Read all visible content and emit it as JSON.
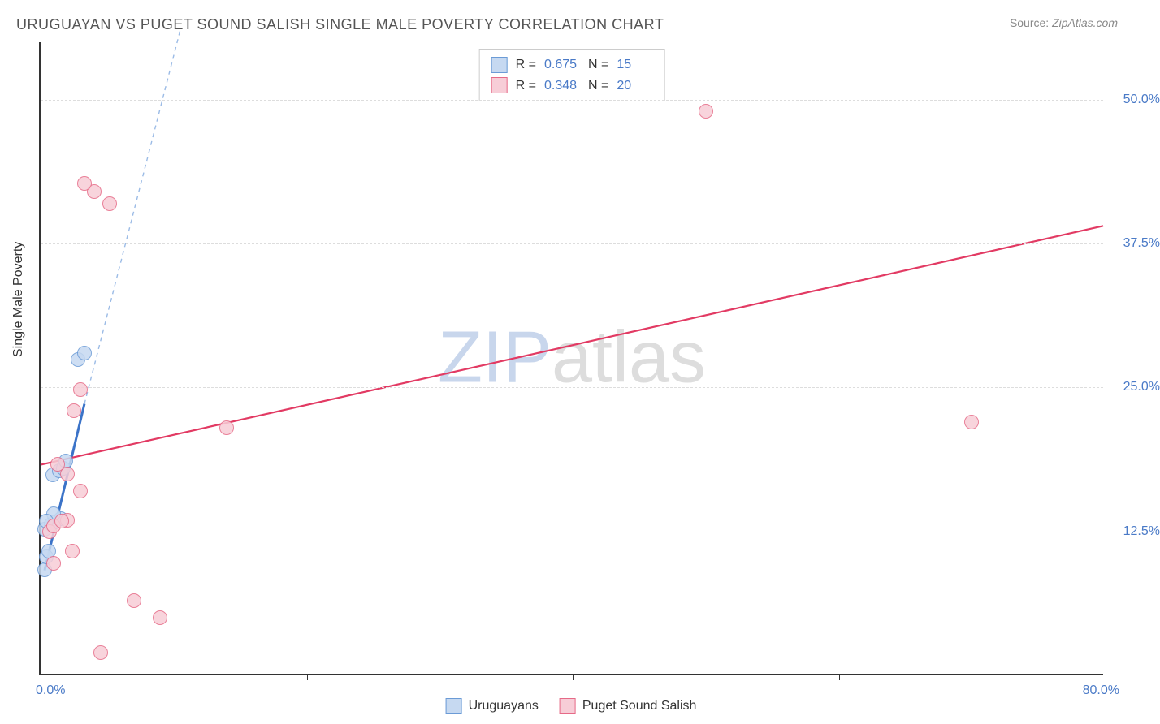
{
  "title": "URUGUAYAN VS PUGET SOUND SALISH SINGLE MALE POVERTY CORRELATION CHART",
  "source_label": "Source:",
  "source_value": "ZipAtlas.com",
  "y_axis_title": "Single Male Poverty",
  "watermark_a": "ZIP",
  "watermark_b": "atlas",
  "chart": {
    "xlim": [
      0,
      80
    ],
    "ylim": [
      0,
      55
    ],
    "x_ticks": [
      0,
      80
    ],
    "x_tick_labels": [
      "0.0%",
      "80.0%"
    ],
    "x_inner_ticks": [
      20,
      40,
      60
    ],
    "y_ticks": [
      12.5,
      25.0,
      37.5,
      50.0
    ],
    "y_tick_labels": [
      "12.5%",
      "25.0%",
      "37.5%",
      "50.0%"
    ],
    "grid_color": "#dddddd",
    "background_color": "#ffffff",
    "series": [
      {
        "key": "uruguayans",
        "name": "Uruguayans",
        "fill": "#c6d9f1",
        "stroke": "#6b9bd6",
        "R": "0.675",
        "N": "15",
        "trend": {
          "x1": 0.3,
          "y1": 9.0,
          "x2": 3.3,
          "y2": 23.5,
          "color": "#3b73c8",
          "width": 3
        },
        "trend_ext": {
          "x1": 3.3,
          "y1": 23.5,
          "x2": 10.5,
          "y2": 56.0,
          "color": "#9bbbe6",
          "width": 1.4,
          "dash": "5,5"
        },
        "points": [
          {
            "x": 0.3,
            "y": 9.2
          },
          {
            "x": 0.4,
            "y": 10.3
          },
          {
            "x": 0.6,
            "y": 10.8
          },
          {
            "x": 0.3,
            "y": 12.7
          },
          {
            "x": 0.8,
            "y": 13.1
          },
          {
            "x": 1.1,
            "y": 13.3
          },
          {
            "x": 1.5,
            "y": 13.6
          },
          {
            "x": 1.0,
            "y": 14.0
          },
          {
            "x": 0.9,
            "y": 17.4
          },
          {
            "x": 1.4,
            "y": 17.8
          },
          {
            "x": 1.7,
            "y": 18.0
          },
          {
            "x": 1.9,
            "y": 18.6
          },
          {
            "x": 2.8,
            "y": 27.4
          },
          {
            "x": 3.3,
            "y": 28.0
          },
          {
            "x": 0.4,
            "y": 13.4
          }
        ]
      },
      {
        "key": "puget",
        "name": "Puget Sound Salish",
        "fill": "#f7cdd7",
        "stroke": "#e66a87",
        "R": "0.348",
        "N": "20",
        "trend": {
          "x1": 0,
          "y1": 18.2,
          "x2": 80,
          "y2": 39.0,
          "color": "#e23a63",
          "width": 2.2
        },
        "points": [
          {
            "x": 4.5,
            "y": 2.0
          },
          {
            "x": 9.0,
            "y": 5.0
          },
          {
            "x": 7.0,
            "y": 6.5
          },
          {
            "x": 1.0,
            "y": 9.7
          },
          {
            "x": 2.4,
            "y": 10.8
          },
          {
            "x": 0.7,
            "y": 12.5
          },
          {
            "x": 1.0,
            "y": 13.0
          },
          {
            "x": 2.0,
            "y": 13.5
          },
          {
            "x": 3.0,
            "y": 16.0
          },
          {
            "x": 2.0,
            "y": 17.5
          },
          {
            "x": 1.3,
            "y": 18.3
          },
          {
            "x": 14.0,
            "y": 21.5
          },
          {
            "x": 70.0,
            "y": 22.0
          },
          {
            "x": 2.5,
            "y": 23.0
          },
          {
            "x": 3.0,
            "y": 24.8
          },
          {
            "x": 5.2,
            "y": 41.0
          },
          {
            "x": 4.0,
            "y": 42.0
          },
          {
            "x": 3.3,
            "y": 42.7
          },
          {
            "x": 50.0,
            "y": 49.0
          },
          {
            "x": 1.6,
            "y": 13.4
          }
        ]
      }
    ]
  },
  "stat_box": {
    "r_label": "R =",
    "n_label": "N ="
  }
}
